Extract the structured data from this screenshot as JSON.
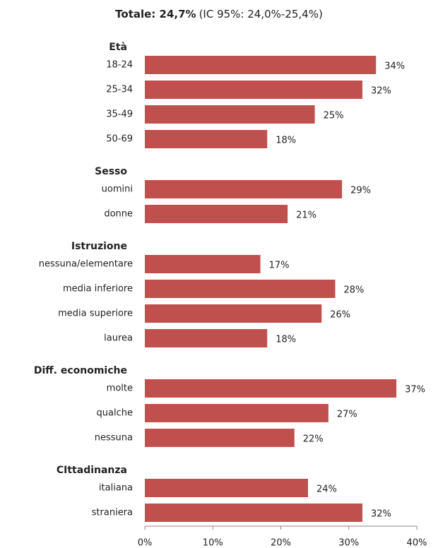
{
  "chart_data": {
    "type": "bar",
    "orientation": "horizontal",
    "title": "Totale: 24,7%",
    "subtitle": "(IC 95%: 24,0%-25,4%)",
    "color": "#c0504d",
    "groups": [
      {
        "name": "Età",
        "categories": [
          "18-24",
          "25-34",
          "35-49",
          "50-69"
        ],
        "values": [
          34,
          32,
          25,
          18
        ],
        "value_labels": [
          "34%",
          "32%",
          "25%",
          "18%"
        ]
      },
      {
        "name": "Sesso",
        "categories": [
          "uomini",
          "donne"
        ],
        "values": [
          29,
          21
        ],
        "value_labels": [
          "29%",
          "21%"
        ]
      },
      {
        "name": "Istruzione",
        "categories": [
          "nessuna/elementare",
          "media inferiore",
          "media superiore",
          "laurea"
        ],
        "values": [
          17,
          28,
          26,
          18
        ],
        "value_labels": [
          "17%",
          "28%",
          "26%",
          "18%"
        ]
      },
      {
        "name": "Diff. economiche",
        "categories": [
          "molte",
          "qualche",
          "nessuna"
        ],
        "values": [
          37,
          27,
          22
        ],
        "value_labels": [
          "37%",
          "27%",
          "22%"
        ]
      },
      {
        "name": "CIttadinanza",
        "categories": [
          "italiana",
          "straniera"
        ],
        "values": [
          24,
          32
        ],
        "value_labels": [
          "24%",
          "32%"
        ]
      }
    ],
    "xlim": [
      0,
      40
    ],
    "xticks": [
      {
        "value": 0,
        "label": "0%"
      },
      {
        "value": 10,
        "label": "10%"
      },
      {
        "value": 20,
        "label": "20%"
      },
      {
        "value": 30,
        "label": "30%"
      },
      {
        "value": 40,
        "label": "40%"
      }
    ],
    "grid": false
  }
}
